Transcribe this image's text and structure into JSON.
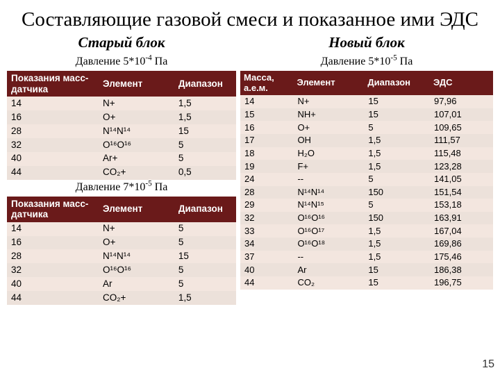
{
  "title": "Составляющие газовой смеси и показанное ими ЭДС",
  "page_number": "15",
  "colors": {
    "header_bg": "#6a1a1a",
    "header_fg": "#ffffff",
    "row_bg_a": "#f3e6df",
    "row_bg_b": "#ece1da",
    "page_bg": "#ffffff",
    "text": "#000000"
  },
  "typography": {
    "title_font": "Times New Roman",
    "title_size_pt": 29,
    "block_label_size_pt": 21,
    "pressure_size_pt": 16,
    "table_font": "Arial",
    "table_size_pt": 13.5
  },
  "left": {
    "label": "Старый блок",
    "pressure1": "Давление 5*10⁻⁴ Па",
    "pressure2": "Давление 7*10⁻⁵ Па",
    "headers": [
      "Показания масс-датчика",
      "Элемент",
      "Диапазон"
    ],
    "table1_rows": [
      [
        "14",
        "N+",
        "1,5"
      ],
      [
        "16",
        "O+",
        "1,5"
      ],
      [
        "28",
        "N¹⁴N¹⁴",
        "15"
      ],
      [
        "32",
        "O¹⁶O¹⁶",
        "5"
      ],
      [
        "40",
        "Ar+",
        "5"
      ],
      [
        "44",
        "CO₂+",
        "0,5"
      ]
    ],
    "table2_rows": [
      [
        "14",
        "N+",
        "5"
      ],
      [
        "16",
        "O+",
        "5"
      ],
      [
        "28",
        "N¹⁴N¹⁴",
        "15"
      ],
      [
        "32",
        "O¹⁶O¹⁶",
        "5"
      ],
      [
        "40",
        "Ar",
        "5"
      ],
      [
        "44",
        "CO₂+",
        "1,5"
      ]
    ]
  },
  "right": {
    "label": "Новый блок",
    "pressure": "Давление 5*10⁻⁵ Па",
    "headers": [
      "Масса, а.е.м.",
      "Элемент",
      "Диапазон",
      "ЭДС"
    ],
    "rows": [
      [
        "14",
        "N+",
        "15",
        "97,96"
      ],
      [
        "15",
        "NH+",
        "15",
        "107,01"
      ],
      [
        "16",
        "O+",
        "5",
        "109,65"
      ],
      [
        "17",
        "OH",
        "1,5",
        "111,57"
      ],
      [
        "18",
        "H₂O",
        "1,5",
        "115,48"
      ],
      [
        "19",
        "F+",
        "1,5",
        "123,28"
      ],
      [
        "24",
        "--",
        "5",
        "141,05"
      ],
      [
        "28",
        "N¹⁴N¹⁴",
        "150",
        "151,54"
      ],
      [
        "29",
        "N¹⁴N¹⁵",
        "5",
        "153,18"
      ],
      [
        "32",
        "O¹⁶O¹⁶",
        "150",
        "163,91"
      ],
      [
        "33",
        "O¹⁶O¹⁷",
        "1,5",
        "167,04"
      ],
      [
        "34",
        "O¹⁶O¹⁸",
        "1,5",
        "169,86"
      ],
      [
        "37",
        "--",
        "1,5",
        "175,46"
      ],
      [
        "40",
        "Ar",
        "15",
        "186,38"
      ],
      [
        "44",
        "CO₂",
        "15",
        "196,75"
      ]
    ]
  }
}
